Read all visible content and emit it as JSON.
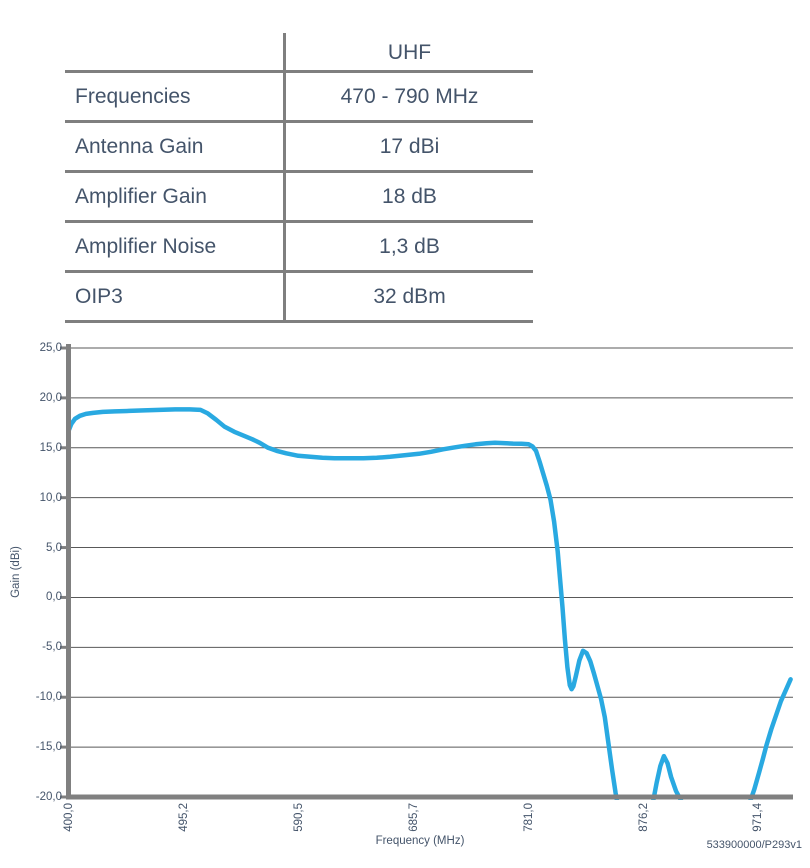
{
  "table": {
    "header": "UHF",
    "rows": [
      {
        "label": "Frequencies",
        "value": "470 - 790 MHz"
      },
      {
        "label": "Antenna Gain",
        "value": "17 dBi"
      },
      {
        "label": "Amplifier Gain",
        "value": "18 dB"
      },
      {
        "label": "Amplifier Noise",
        "value": "1,3 dB"
      },
      {
        "label": "OIP3",
        "value": "32 dBm"
      }
    ]
  },
  "chart_data": {
    "type": "line",
    "title": "",
    "xlabel": "Frequency (MHz)",
    "ylabel": "Gain (dBi)",
    "xlim": [
      400,
      1000
    ],
    "ylim": [
      -20,
      25
    ],
    "grid": true,
    "legend": "none",
    "xticks": [
      {
        "v": 400.0,
        "label": "400,0"
      },
      {
        "v": 495.2,
        "label": "495,2"
      },
      {
        "v": 590.5,
        "label": "590,5"
      },
      {
        "v": 685.7,
        "label": "685,7"
      },
      {
        "v": 781.0,
        "label": "781,0"
      },
      {
        "v": 876.2,
        "label": "876,2"
      },
      {
        "v": 971.4,
        "label": "971,4"
      }
    ],
    "yticks": [
      {
        "v": 25,
        "label": "25,0"
      },
      {
        "v": 20,
        "label": "20,0"
      },
      {
        "v": 15,
        "label": "15,0"
      },
      {
        "v": 10,
        "label": "10,0"
      },
      {
        "v": 5,
        "label": "5,0"
      },
      {
        "v": 0,
        "label": "0,0"
      },
      {
        "v": -5,
        "label": "-5,0"
      },
      {
        "v": -10,
        "label": "-10,0"
      },
      {
        "v": -15,
        "label": "-15,0"
      },
      {
        "v": -20,
        "label": "-20,0"
      }
    ],
    "series": [
      {
        "name": "Gain",
        "color": "#29a9e1",
        "points": [
          [
            400,
            16.8
          ],
          [
            402,
            17.4
          ],
          [
            405,
            17.9
          ],
          [
            409,
            18.2
          ],
          [
            414,
            18.4
          ],
          [
            420,
            18.5
          ],
          [
            428,
            18.6
          ],
          [
            438,
            18.65
          ],
          [
            450,
            18.7
          ],
          [
            462,
            18.75
          ],
          [
            475,
            18.8
          ],
          [
            488,
            18.85
          ],
          [
            500,
            18.85
          ],
          [
            509,
            18.8
          ],
          [
            515,
            18.45
          ],
          [
            522,
            17.8
          ],
          [
            529,
            17.1
          ],
          [
            537,
            16.6
          ],
          [
            545,
            16.2
          ],
          [
            552,
            15.85
          ],
          [
            558,
            15.5
          ],
          [
            565,
            15.0
          ],
          [
            572,
            14.7
          ],
          [
            580,
            14.45
          ],
          [
            590,
            14.2
          ],
          [
            600,
            14.1
          ],
          [
            610,
            14.0
          ],
          [
            620,
            13.95
          ],
          [
            632,
            13.95
          ],
          [
            644,
            13.95
          ],
          [
            655,
            14.0
          ],
          [
            666,
            14.1
          ],
          [
            678,
            14.25
          ],
          [
            690,
            14.4
          ],
          [
            700,
            14.6
          ],
          [
            710,
            14.85
          ],
          [
            720,
            15.05
          ],
          [
            728,
            15.2
          ],
          [
            737,
            15.35
          ],
          [
            746,
            15.45
          ],
          [
            753,
            15.5
          ],
          [
            760,
            15.47
          ],
          [
            768,
            15.42
          ],
          [
            775,
            15.4
          ],
          [
            781,
            15.35
          ],
          [
            784,
            15.15
          ],
          [
            787,
            14.7
          ],
          [
            790,
            13.6
          ],
          [
            793,
            12.4
          ],
          [
            796,
            11.2
          ],
          [
            799,
            9.8
          ],
          [
            802,
            7.6
          ],
          [
            805,
            4.6
          ],
          [
            807,
            1.8
          ],
          [
            809,
            -1.0
          ],
          [
            811,
            -4.2
          ],
          [
            813,
            -7.0
          ],
          [
            815,
            -8.8
          ],
          [
            816.5,
            -9.2
          ],
          [
            818,
            -8.9
          ],
          [
            820,
            -7.9
          ],
          [
            823,
            -6.3
          ],
          [
            826,
            -5.35
          ],
          [
            829,
            -5.6
          ],
          [
            832,
            -6.4
          ],
          [
            835,
            -7.6
          ],
          [
            838,
            -8.9
          ],
          [
            841,
            -10.2
          ],
          [
            844,
            -12.0
          ],
          [
            847,
            -14.6
          ],
          [
            850,
            -17.2
          ],
          [
            853,
            -19.6
          ],
          [
            856,
            -21.6
          ],
          [
            862,
            -23.8
          ],
          [
            868,
            -24.6
          ],
          [
            874,
            -24.0
          ],
          [
            879,
            -22.2
          ],
          [
            884,
            -20.5
          ],
          [
            887,
            -18.6
          ],
          [
            890,
            -16.9
          ],
          [
            893,
            -15.9
          ],
          [
            896,
            -16.6
          ],
          [
            899,
            -18.0
          ],
          [
            903,
            -19.4
          ],
          [
            907,
            -20.3
          ],
          [
            912,
            -21.9
          ],
          [
            919,
            -23.7
          ],
          [
            928,
            -25.0
          ],
          [
            940,
            -25.4
          ],
          [
            950,
            -24.2
          ],
          [
            958,
            -22.4
          ],
          [
            964,
            -20.6
          ],
          [
            968,
            -19.2
          ],
          [
            972,
            -17.5
          ],
          [
            975,
            -16.2
          ],
          [
            978,
            -14.8
          ],
          [
            982,
            -13.2
          ],
          [
            986,
            -11.8
          ],
          [
            990,
            -10.4
          ],
          [
            994,
            -9.3
          ],
          [
            998,
            -8.2
          ]
        ]
      }
    ]
  },
  "footer": {
    "doc_ref": "533900000/P293v1"
  },
  "colors": {
    "accent": "#29a9e1",
    "axis": "#808080",
    "grid": "#595959",
    "text": "#44546a",
    "table_border": "#7f7f7f"
  }
}
